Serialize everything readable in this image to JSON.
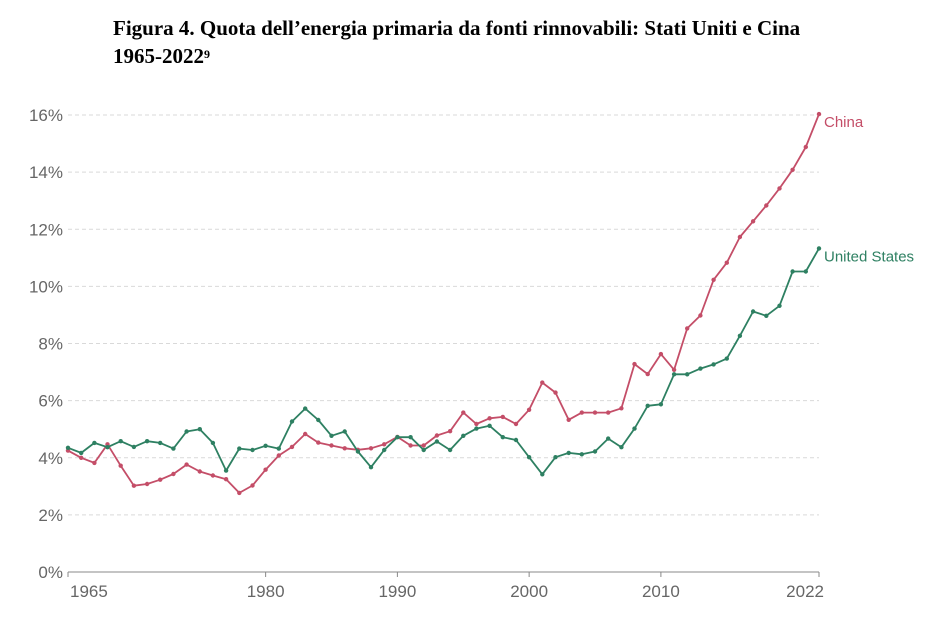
{
  "title": {
    "text": "Figura 4. Quota dell’energia primaria da fonti rinnovabili: Stati Uniti e Cina 1965-2022",
    "footnote": "9"
  },
  "chart_data": {
    "type": "line",
    "title": "",
    "xlabel": "",
    "ylabel": "",
    "x": [
      1965,
      1966,
      1967,
      1968,
      1969,
      1970,
      1971,
      1972,
      1973,
      1974,
      1975,
      1976,
      1977,
      1978,
      1979,
      1980,
      1981,
      1982,
      1983,
      1984,
      1985,
      1986,
      1987,
      1988,
      1989,
      1990,
      1991,
      1992,
      1993,
      1994,
      1995,
      1996,
      1997,
      1998,
      1999,
      2000,
      2001,
      2002,
      2003,
      2004,
      2005,
      2006,
      2007,
      2008,
      2009,
      2010,
      2011,
      2012,
      2013,
      2014,
      2015,
      2016,
      2017,
      2018,
      2019,
      2020,
      2021,
      2022
    ],
    "xlim": [
      1965,
      2022
    ],
    "ylim": [
      0,
      16
    ],
    "x_ticks": [
      1965,
      1980,
      1990,
      2000,
      2010,
      2022
    ],
    "y_ticks": [
      0,
      2,
      4,
      6,
      8,
      10,
      12,
      14,
      16
    ],
    "y_tick_labels": [
      "0%",
      "2%",
      "4%",
      "6%",
      "8%",
      "10%",
      "12%",
      "14%",
      "16%"
    ],
    "grid": "horizontal dashed",
    "legend": "direct labels at line ends",
    "series": [
      {
        "name": "China",
        "color": "#c44e68",
        "values": [
          4.25,
          4.0,
          3.82,
          4.47,
          3.72,
          3.02,
          3.08,
          3.23,
          3.43,
          3.76,
          3.52,
          3.38,
          3.25,
          2.77,
          3.03,
          3.58,
          4.08,
          4.38,
          4.83,
          4.53,
          4.43,
          4.33,
          4.28,
          4.33,
          4.47,
          4.73,
          4.43,
          4.43,
          4.78,
          4.93,
          5.58,
          5.18,
          5.38,
          5.43,
          5.18,
          5.68,
          6.63,
          6.28,
          5.33,
          5.58,
          5.58,
          5.58,
          5.73,
          7.28,
          6.93,
          7.63,
          7.08,
          8.53,
          8.98,
          10.23,
          10.83,
          11.73,
          12.28,
          12.83,
          13.43,
          14.08,
          14.88,
          16.03
        ]
      },
      {
        "name": "United States",
        "color": "#2e8062",
        "values": [
          4.35,
          4.17,
          4.52,
          4.37,
          4.58,
          4.38,
          4.58,
          4.52,
          4.32,
          4.92,
          5.0,
          4.52,
          3.55,
          4.32,
          4.27,
          4.42,
          4.32,
          5.27,
          5.72,
          5.32,
          4.77,
          4.92,
          4.22,
          3.67,
          4.27,
          4.72,
          4.72,
          4.27,
          4.57,
          4.27,
          4.77,
          5.02,
          5.12,
          4.72,
          4.62,
          4.02,
          3.42,
          4.02,
          4.17,
          4.12,
          4.22,
          4.67,
          4.37,
          5.02,
          5.82,
          5.87,
          6.92,
          6.92,
          7.12,
          7.27,
          7.47,
          8.27,
          9.12,
          8.97,
          9.32,
          10.52,
          10.52,
          11.33
        ]
      }
    ]
  }
}
